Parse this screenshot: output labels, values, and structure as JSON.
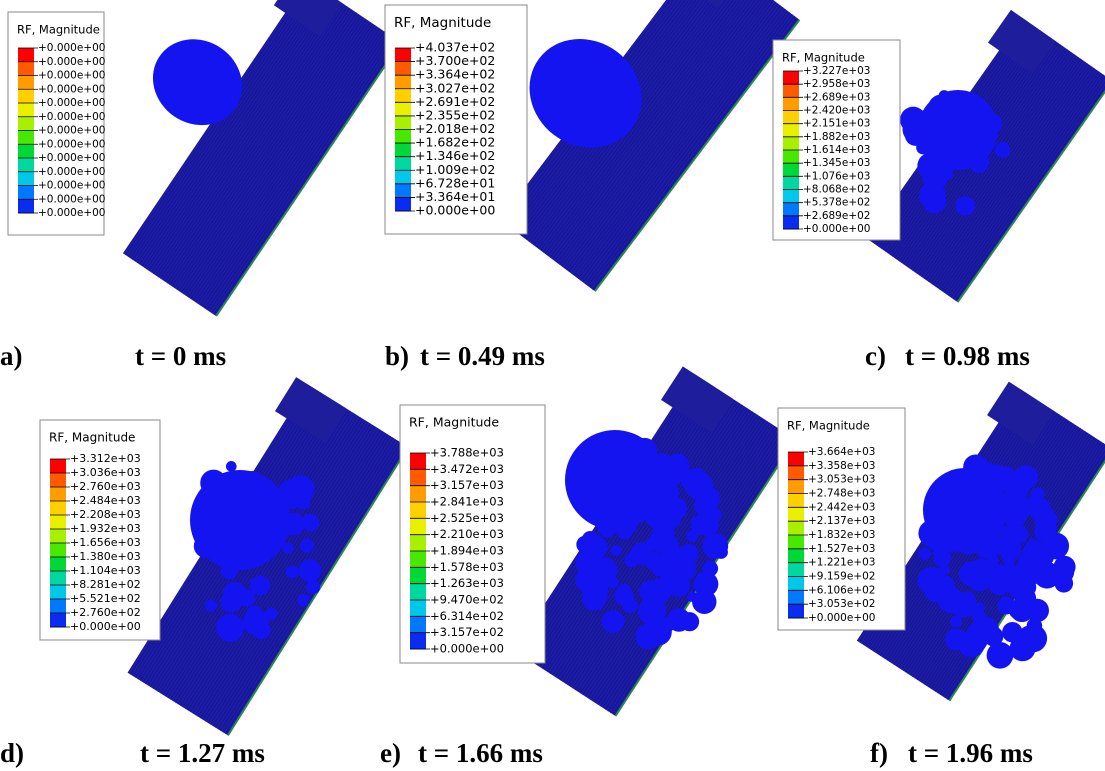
{
  "panels": [
    {
      "letter": "a)",
      "time": "t = 0 ms",
      "legend": {
        "title": "RF, Magnitude",
        "labels": [
          "+0.000e+00",
          "+0.000e+00",
          "+0.000e+00",
          "+0.000e+00",
          "+0.000e+00",
          "+0.000e+00",
          "+0.000e+00",
          "+0.000e+00",
          "+0.000e+00",
          "+0.000e+00",
          "+0.000e+00",
          "+0.000e+00",
          "+0.000e+00"
        ]
      }
    },
    {
      "letter": "b)",
      "time": "t = 0.49 ms",
      "legend": {
        "title": "RF, Magnitude",
        "labels": [
          "+4.037e+02",
          "+3.700e+02",
          "+3.364e+02",
          "+3.027e+02",
          "+2.691e+02",
          "+2.355e+02",
          "+2.018e+02",
          "+1.682e+02",
          "+1.346e+02",
          "+1.009e+02",
          "+6.728e+01",
          "+3.364e+01",
          "+0.000e+00"
        ]
      }
    },
    {
      "letter": "c)",
      "time": "t = 0.98 ms",
      "legend": {
        "title": "RF, Magnitude",
        "labels": [
          "+3.227e+03",
          "+2.958e+03",
          "+2.689e+03",
          "+2.420e+03",
          "+2.151e+03",
          "+1.882e+03",
          "+1.614e+03",
          "+1.345e+03",
          "+1.076e+03",
          "+8.068e+02",
          "+5.378e+02",
          "+2.689e+02",
          "+0.000e+00"
        ]
      }
    },
    {
      "letter": "d)",
      "time": "t = 1.27 ms",
      "legend": {
        "title": "RF, Magnitude",
        "labels": [
          "+3.312e+03",
          "+3.036e+03",
          "+2.760e+03",
          "+2.484e+03",
          "+2.208e+03",
          "+1.932e+03",
          "+1.656e+03",
          "+1.380e+03",
          "+1.104e+03",
          "+8.281e+02",
          "+5.521e+02",
          "+2.760e+02",
          "+0.000e+00"
        ]
      }
    },
    {
      "letter": "e)",
      "time": "t = 1.66 ms",
      "legend": {
        "title": "RF, Magnitude",
        "labels": [
          "+3.788e+03",
          "+3.472e+03",
          "+3.157e+03",
          "+2.841e+03",
          "+2.525e+03",
          "+2.210e+03",
          "+1.894e+03",
          "+1.578e+03",
          "+1.263e+03",
          "+9.470e+02",
          "+6.314e+02",
          "+3.157e+02",
          "+0.000e+00"
        ]
      }
    },
    {
      "letter": "f)",
      "time": "t = 1.96 ms",
      "legend": {
        "title": "RF, Magnitude",
        "labels": [
          "+3.664e+03",
          "+3.358e+03",
          "+3.053e+03",
          "+2.748e+03",
          "+2.442e+03",
          "+2.137e+03",
          "+1.832e+03",
          "+1.527e+03",
          "+1.221e+03",
          "+9.159e+02",
          "+6.106e+02",
          "+3.053e+02",
          "+0.000e+00"
        ]
      }
    }
  ]
}
